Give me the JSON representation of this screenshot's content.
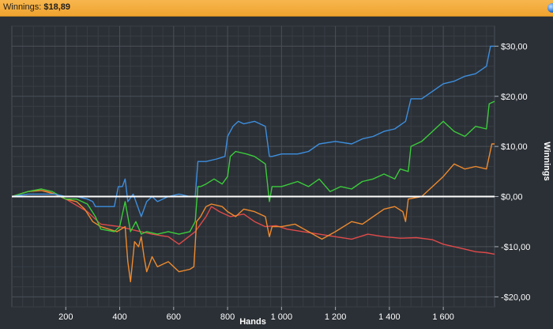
{
  "header": {
    "label": "Winnings:",
    "value": "$18,89"
  },
  "chart_data": {
    "type": "line",
    "xlabel": "Hands",
    "ylabel": "Winnings",
    "xlim": [
      0,
      1790
    ],
    "ylim": [
      -22,
      34
    ],
    "x_ticks": [
      {
        "v": 200,
        "label": "200"
      },
      {
        "v": 400,
        "label": "400"
      },
      {
        "v": 600,
        "label": "600"
      },
      {
        "v": 800,
        "label": "800"
      },
      {
        "v": 1000,
        "label": "1 000"
      },
      {
        "v": 1200,
        "label": "1 200"
      },
      {
        "v": 1400,
        "label": "1 400"
      },
      {
        "v": 1600,
        "label": "1 600"
      }
    ],
    "y_ticks": [
      {
        "v": 30,
        "label": "$30,00"
      },
      {
        "v": 20,
        "label": "$20,00"
      },
      {
        "v": 10,
        "label": "$10,00"
      },
      {
        "v": 0,
        "label": "$0,00"
      },
      {
        "v": -10,
        "label": "-$10,00"
      },
      {
        "v": -20,
        "label": "-$20,00"
      }
    ],
    "grid": true,
    "zero_line": true,
    "colors": {
      "background": "#2b3036",
      "grid_major": "#4a5058",
      "grid_minor": "#383d44",
      "zero_line": "#ffffff"
    },
    "series": [
      {
        "color": "#e04a4a",
        "points": [
          [
            0,
            0
          ],
          [
            60,
            1
          ],
          [
            110,
            1.5
          ],
          [
            160,
            0.5
          ],
          [
            200,
            -0.5
          ],
          [
            280,
            -3
          ],
          [
            330,
            -5.5
          ],
          [
            400,
            -6
          ],
          [
            460,
            -6.8
          ],
          [
            520,
            -7.5
          ],
          [
            580,
            -8
          ],
          [
            620,
            -9.5
          ],
          [
            680,
            -7
          ],
          [
            720,
            -4
          ],
          [
            740,
            -2
          ],
          [
            770,
            -3
          ],
          [
            810,
            -4
          ],
          [
            860,
            -3.5
          ],
          [
            900,
            -5
          ],
          [
            940,
            -6
          ],
          [
            980,
            -5.8
          ],
          [
            1020,
            -6.5
          ],
          [
            1080,
            -7
          ],
          [
            1140,
            -7.5
          ],
          [
            1200,
            -8
          ],
          [
            1260,
            -8.5
          ],
          [
            1320,
            -7.5
          ],
          [
            1380,
            -8
          ],
          [
            1440,
            -8.3
          ],
          [
            1500,
            -8.2
          ],
          [
            1560,
            -8.6
          ],
          [
            1600,
            -9.5
          ],
          [
            1640,
            -10
          ],
          [
            1680,
            -10.5
          ],
          [
            1720,
            -11
          ],
          [
            1760,
            -11.2
          ],
          [
            1790,
            -11.5
          ]
        ]
      },
      {
        "color": "#ee8a2e",
        "points": [
          [
            0,
            0
          ],
          [
            60,
            1
          ],
          [
            110,
            1.2
          ],
          [
            160,
            0.5
          ],
          [
            200,
            -0.5
          ],
          [
            240,
            -1
          ],
          [
            270,
            -2.5
          ],
          [
            300,
            -5
          ],
          [
            330,
            -6
          ],
          [
            390,
            -7
          ],
          [
            420,
            -6
          ],
          [
            430,
            -13
          ],
          [
            440,
            -17
          ],
          [
            455,
            -9
          ],
          [
            470,
            -10
          ],
          [
            480,
            -8
          ],
          [
            490,
            -12
          ],
          [
            500,
            -15
          ],
          [
            520,
            -12
          ],
          [
            540,
            -14
          ],
          [
            580,
            -13
          ],
          [
            620,
            -15
          ],
          [
            660,
            -14.5
          ],
          [
            675,
            -14
          ],
          [
            685,
            -5
          ],
          [
            700,
            -4
          ],
          [
            720,
            -2
          ],
          [
            740,
            -1.5
          ],
          [
            780,
            -2
          ],
          [
            800,
            -3
          ],
          [
            830,
            -4
          ],
          [
            860,
            -2.5
          ],
          [
            900,
            -3
          ],
          [
            940,
            -4
          ],
          [
            955,
            -8
          ],
          [
            965,
            -6
          ],
          [
            1000,
            -6
          ],
          [
            1050,
            -5.5
          ],
          [
            1100,
            -7
          ],
          [
            1150,
            -8.5
          ],
          [
            1200,
            -7
          ],
          [
            1260,
            -5
          ],
          [
            1300,
            -5.5
          ],
          [
            1340,
            -4
          ],
          [
            1380,
            -2.5
          ],
          [
            1420,
            -2
          ],
          [
            1450,
            -3
          ],
          [
            1460,
            -5
          ],
          [
            1470,
            -0.5
          ],
          [
            1520,
            0
          ],
          [
            1560,
            2
          ],
          [
            1600,
            4
          ],
          [
            1640,
            6.5
          ],
          [
            1680,
            5.5
          ],
          [
            1720,
            6
          ],
          [
            1760,
            5.5
          ],
          [
            1780,
            10.5
          ],
          [
            1790,
            10.5
          ]
        ]
      },
      {
        "color": "#3bcc3b",
        "points": [
          [
            0,
            0
          ],
          [
            60,
            1
          ],
          [
            110,
            1.5
          ],
          [
            150,
            1
          ],
          [
            200,
            -0.5
          ],
          [
            240,
            -0.5
          ],
          [
            280,
            -1.5
          ],
          [
            310,
            -4
          ],
          [
            330,
            -6.5
          ],
          [
            380,
            -7
          ],
          [
            400,
            -6
          ],
          [
            420,
            -1
          ],
          [
            440,
            -7
          ],
          [
            460,
            -5
          ],
          [
            480,
            -7.5
          ],
          [
            500,
            -7
          ],
          [
            540,
            -7.5
          ],
          [
            580,
            -7
          ],
          [
            620,
            -7.5
          ],
          [
            660,
            -7
          ],
          [
            680,
            -5
          ],
          [
            690,
            2
          ],
          [
            700,
            2
          ],
          [
            720,
            2.5
          ],
          [
            750,
            3.5
          ],
          [
            780,
            2.5
          ],
          [
            800,
            4
          ],
          [
            810,
            8
          ],
          [
            830,
            9
          ],
          [
            870,
            8.5
          ],
          [
            900,
            8
          ],
          [
            940,
            6.5
          ],
          [
            955,
            -1
          ],
          [
            965,
            2
          ],
          [
            1000,
            2
          ],
          [
            1060,
            3
          ],
          [
            1100,
            2
          ],
          [
            1140,
            3.5
          ],
          [
            1180,
            1
          ],
          [
            1220,
            2
          ],
          [
            1260,
            1.5
          ],
          [
            1300,
            3
          ],
          [
            1340,
            3.5
          ],
          [
            1380,
            4.5
          ],
          [
            1420,
            3.5
          ],
          [
            1440,
            5.5
          ],
          [
            1470,
            5
          ],
          [
            1480,
            10
          ],
          [
            1520,
            11
          ],
          [
            1560,
            13
          ],
          [
            1600,
            15
          ],
          [
            1640,
            13
          ],
          [
            1680,
            12
          ],
          [
            1720,
            14
          ],
          [
            1760,
            13.5
          ],
          [
            1770,
            18.5
          ],
          [
            1790,
            19
          ]
        ]
      },
      {
        "color": "#3d8ede",
        "points": [
          [
            0,
            0
          ],
          [
            60,
            0.5
          ],
          [
            110,
            0.5
          ],
          [
            160,
            0.5
          ],
          [
            200,
            0
          ],
          [
            240,
            0
          ],
          [
            280,
            -0.5
          ],
          [
            300,
            -1
          ],
          [
            310,
            -2
          ],
          [
            330,
            -2
          ],
          [
            380,
            -2
          ],
          [
            395,
            2
          ],
          [
            410,
            2
          ],
          [
            420,
            3.5
          ],
          [
            430,
            -1
          ],
          [
            450,
            0.5
          ],
          [
            460,
            -1
          ],
          [
            480,
            -4
          ],
          [
            500,
            -1
          ],
          [
            520,
            0
          ],
          [
            540,
            -1
          ],
          [
            580,
            0
          ],
          [
            620,
            0.5
          ],
          [
            660,
            0
          ],
          [
            680,
            0
          ],
          [
            690,
            7
          ],
          [
            720,
            7
          ],
          [
            760,
            7.5
          ],
          [
            790,
            8
          ],
          [
            800,
            12
          ],
          [
            820,
            14
          ],
          [
            840,
            15
          ],
          [
            860,
            14.5
          ],
          [
            900,
            15
          ],
          [
            940,
            14
          ],
          [
            955,
            8
          ],
          [
            965,
            8
          ],
          [
            1000,
            8.5
          ],
          [
            1060,
            8.5
          ],
          [
            1100,
            9
          ],
          [
            1140,
            10.5
          ],
          [
            1200,
            11
          ],
          [
            1260,
            10.5
          ],
          [
            1300,
            11.5
          ],
          [
            1340,
            12
          ],
          [
            1380,
            13
          ],
          [
            1420,
            13.5
          ],
          [
            1460,
            15
          ],
          [
            1480,
            19.5
          ],
          [
            1520,
            19.5
          ],
          [
            1560,
            21
          ],
          [
            1600,
            22.5
          ],
          [
            1640,
            23
          ],
          [
            1680,
            24
          ],
          [
            1720,
            24.5
          ],
          [
            1760,
            26
          ],
          [
            1775,
            30
          ],
          [
            1790,
            30
          ]
        ]
      }
    ]
  }
}
